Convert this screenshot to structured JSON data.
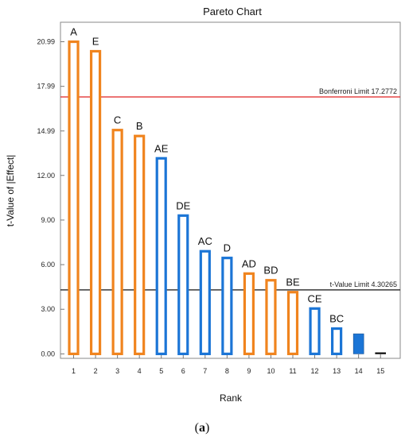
{
  "chart_data": {
    "type": "bar",
    "title": "Pareto Chart",
    "xlabel": "Rank",
    "ylabel": "t-Value of |Effect|",
    "caption_open": "(",
    "caption_letter": "a",
    "caption_close": ")",
    "ylim": [
      -0.3,
      22.3
    ],
    "xlim": [
      0.4,
      15.9
    ],
    "yticks": [
      0.0,
      3.0,
      6.0,
      9.0,
      12.0,
      14.99,
      17.99,
      20.99
    ],
    "ytick_labels": [
      "0.00",
      "3.00",
      "6.00",
      "9.00",
      "12.00",
      "14.99",
      "17.99",
      "20.99"
    ],
    "xticks": [
      1,
      2,
      3,
      4,
      5,
      6,
      7,
      8,
      9,
      10,
      11,
      12,
      13,
      14,
      15
    ],
    "xtick_labels": [
      "1",
      "2",
      "3",
      "4",
      "5",
      "6",
      "7",
      "8",
      "9",
      "10",
      "11",
      "12",
      "13",
      "14",
      "15"
    ],
    "colors": {
      "positive": "#F0841E",
      "negative": "#1B75D6",
      "bonferroni": "#E02020",
      "tlimit": "#111111"
    },
    "bars": [
      {
        "rank": 1,
        "label": "A",
        "value": 20.99,
        "sign": "positive",
        "style": "hollow"
      },
      {
        "rank": 2,
        "label": "E",
        "value": 20.35,
        "sign": "positive",
        "style": "hollow"
      },
      {
        "rank": 3,
        "label": "C",
        "value": 15.05,
        "sign": "positive",
        "style": "hollow"
      },
      {
        "rank": 4,
        "label": "B",
        "value": 14.65,
        "sign": "positive",
        "style": "hollow"
      },
      {
        "rank": 5,
        "label": "AE",
        "value": 13.15,
        "sign": "negative",
        "style": "hollow"
      },
      {
        "rank": 6,
        "label": "DE",
        "value": 9.3,
        "sign": "negative",
        "style": "hollow"
      },
      {
        "rank": 7,
        "label": "AC",
        "value": 6.9,
        "sign": "negative",
        "style": "hollow"
      },
      {
        "rank": 8,
        "label": "D",
        "value": 6.45,
        "sign": "negative",
        "style": "hollow"
      },
      {
        "rank": 9,
        "label": "AD",
        "value": 5.4,
        "sign": "positive",
        "style": "hollow"
      },
      {
        "rank": 10,
        "label": "BD",
        "value": 4.95,
        "sign": "positive",
        "style": "hollow"
      },
      {
        "rank": 11,
        "label": "BE",
        "value": 4.15,
        "sign": "positive",
        "style": "hollow"
      },
      {
        "rank": 12,
        "label": "CE",
        "value": 3.05,
        "sign": "negative",
        "style": "hollow"
      },
      {
        "rank": 13,
        "label": "BC",
        "value": 1.7,
        "sign": "negative",
        "style": "hollow"
      },
      {
        "rank": 14,
        "label": "",
        "value": 1.35,
        "sign": "negative",
        "style": "filled"
      },
      {
        "rank": 15,
        "label": "",
        "value": 0.05,
        "sign": "neutral",
        "style": "filled"
      }
    ],
    "reference_lines": [
      {
        "name": "bonferroni",
        "label": "Bonferroni Limit 17.2772",
        "value": 17.2772
      },
      {
        "name": "t-value",
        "label": "t-Value Limit 4.30265",
        "value": 4.30265
      }
    ],
    "grid": false,
    "legend": "none"
  }
}
